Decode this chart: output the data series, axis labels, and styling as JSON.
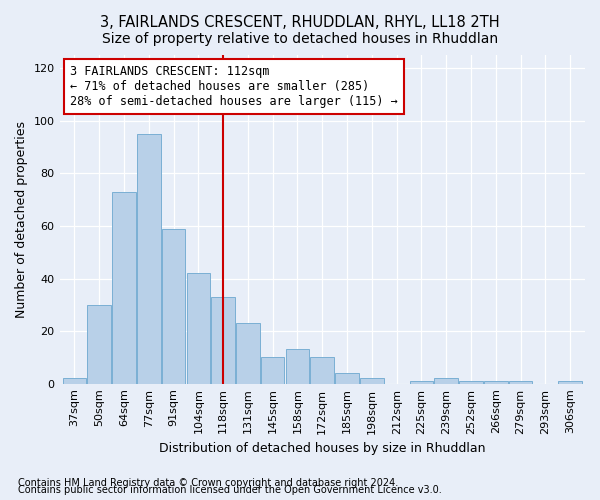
{
  "title": "3, FAIRLANDS CRESCENT, RHUDDLAN, RHYL, LL18 2TH",
  "subtitle": "Size of property relative to detached houses in Rhuddlan",
  "xlabel": "Distribution of detached houses by size in Rhuddlan",
  "ylabel": "Number of detached properties",
  "categories": [
    "37sqm",
    "50sqm",
    "64sqm",
    "77sqm",
    "91sqm",
    "104sqm",
    "118sqm",
    "131sqm",
    "145sqm",
    "158sqm",
    "172sqm",
    "185sqm",
    "198sqm",
    "212sqm",
    "225sqm",
    "239sqm",
    "252sqm",
    "266sqm",
    "279sqm",
    "293sqm",
    "306sqm"
  ],
  "values": [
    2,
    30,
    73,
    95,
    59,
    42,
    33,
    23,
    10,
    13,
    10,
    4,
    2,
    0,
    1,
    2,
    1,
    1,
    1,
    0,
    1
  ],
  "bar_color": "#b8d0e8",
  "bar_edge_color": "#7aafd4",
  "vline_x_index": 6,
  "vline_color": "#cc0000",
  "annotation_line1": "3 FAIRLANDS CRESCENT: 112sqm",
  "annotation_line2": "← 71% of detached houses are smaller (285)",
  "annotation_line3": "28% of semi-detached houses are larger (115) →",
  "annotation_box_color": "#ffffff",
  "annotation_box_edge": "#cc0000",
  "ylim": [
    0,
    125
  ],
  "yticks": [
    0,
    20,
    40,
    60,
    80,
    100,
    120
  ],
  "footer1": "Contains HM Land Registry data © Crown copyright and database right 2024.",
  "footer2": "Contains public sector information licensed under the Open Government Licence v3.0.",
  "bg_color": "#e8eef8",
  "plot_bg_color": "#e8eef8",
  "title_fontsize": 10.5,
  "label_fontsize": 9,
  "tick_fontsize": 8,
  "annotation_fontsize": 8.5,
  "footer_fontsize": 7
}
